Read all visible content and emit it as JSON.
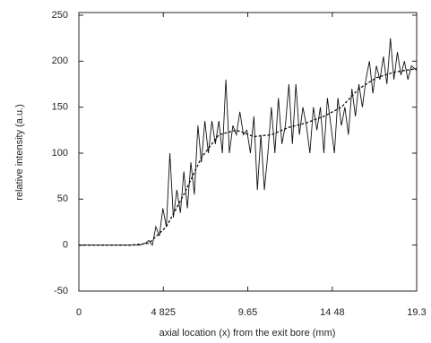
{
  "chart_data": {
    "type": "line",
    "xlabel": "axial location (x) from the exit bore (mm)",
    "ylabel": "relative intensity (a.u.)",
    "xlim": [
      0,
      19.3
    ],
    "xticks": [
      0,
      {
        "value": 4.825,
        "label": "4 825"
      },
      9.65,
      {
        "value": 14.48,
        "label": "14 48"
      },
      19.3
    ],
    "ylim": [
      -50,
      250
    ],
    "yticks": [
      -50,
      0,
      50,
      100,
      150,
      200,
      250
    ],
    "grid": false,
    "series": [
      {
        "color": "#111111",
        "dashed": false,
        "x": [
          0,
          3.5,
          3.8,
          4.0,
          4.2,
          4.4,
          4.6,
          4.8,
          5.0,
          5.2,
          5.4,
          5.6,
          5.8,
          6.0,
          6.2,
          6.4,
          6.6,
          6.8,
          7.0,
          7.2,
          7.4,
          7.6,
          7.8,
          8.0,
          8.2,
          8.4,
          8.6,
          8.8,
          9.0,
          9.2,
          9.4,
          9.6,
          9.8,
          10.0,
          10.2,
          10.4,
          10.6,
          10.8,
          11.0,
          11.2,
          11.4,
          11.6,
          11.8,
          12.0,
          12.2,
          12.4,
          12.6,
          12.8,
          13.0,
          13.2,
          13.4,
          13.6,
          13.8,
          14.0,
          14.2,
          14.4,
          14.6,
          14.8,
          15.0,
          15.2,
          15.4,
          15.6,
          15.8,
          16.0,
          16.2,
          16.4,
          16.6,
          16.8,
          17.0,
          17.2,
          17.4,
          17.6,
          17.8,
          18.0,
          18.2,
          18.4,
          18.6,
          18.8,
          19.0,
          19.3
        ],
        "values": [
          0,
          0,
          2,
          5,
          0,
          20,
          10,
          40,
          20,
          100,
          30,
          60,
          35,
          80,
          40,
          90,
          55,
          130,
          90,
          135,
          100,
          135,
          110,
          135,
          100,
          180,
          100,
          130,
          120,
          145,
          120,
          125,
          100,
          140,
          60,
          120,
          60,
          100,
          150,
          100,
          160,
          110,
          130,
          175,
          110,
          175,
          120,
          150,
          130,
          100,
          150,
          125,
          150,
          100,
          160,
          130,
          100,
          160,
          130,
          150,
          120,
          170,
          140,
          175,
          150,
          180,
          200,
          165,
          195,
          180,
          205,
          175,
          225,
          180,
          210,
          185,
          200,
          180,
          195,
          190
        ]
      },
      {
        "color": "#111111",
        "dashed": true,
        "x": [
          0,
          3,
          4,
          5,
          6,
          7,
          8,
          9,
          10,
          11,
          12,
          13,
          14,
          15,
          16,
          17,
          18,
          19.3
        ],
        "values": [
          0,
          0,
          2,
          20,
          55,
          95,
          120,
          125,
          118,
          120,
          128,
          133,
          140,
          150,
          170,
          182,
          188,
          192
        ]
      }
    ]
  }
}
